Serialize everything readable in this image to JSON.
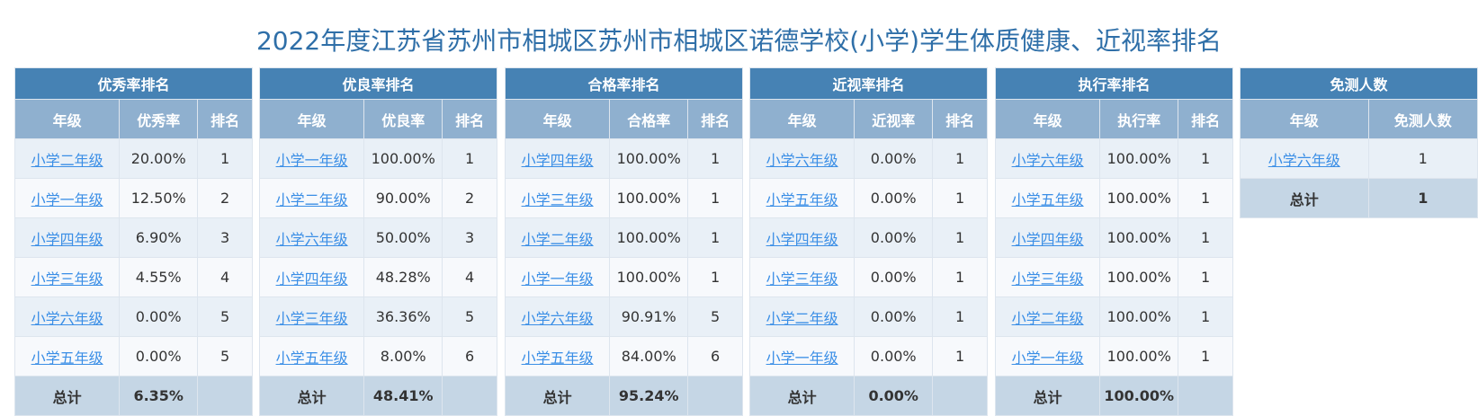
{
  "title": "2022年度江苏省苏州市相城区苏州市相城区诺德学校(小学)学生体质健康、近视率排名",
  "tables": [
    {
      "title": "优秀率排名",
      "headers": [
        "年级",
        "优秀率",
        "排名"
      ],
      "rows": [
        [
          "小学二年级",
          "20.00%",
          "1"
        ],
        [
          "小学一年级",
          "12.50%",
          "2"
        ],
        [
          "小学四年级",
          "6.90%",
          "3"
        ],
        [
          "小学三年级",
          "4.55%",
          "4"
        ],
        [
          "小学六年级",
          "0.00%",
          "5"
        ],
        [
          "小学五年级",
          "0.00%",
          "5"
        ]
      ],
      "total": [
        "总计",
        "6.35%"
      ]
    },
    {
      "title": "优良率排名",
      "headers": [
        "年级",
        "优良率",
        "排名"
      ],
      "rows": [
        [
          "小学一年级",
          "100.00%",
          "1"
        ],
        [
          "小学二年级",
          "90.00%",
          "2"
        ],
        [
          "小学六年级",
          "50.00%",
          "3"
        ],
        [
          "小学四年级",
          "48.28%",
          "4"
        ],
        [
          "小学三年级",
          "36.36%",
          "5"
        ],
        [
          "小学五年级",
          "8.00%",
          "6"
        ]
      ],
      "total": [
        "总计",
        "48.41%"
      ]
    },
    {
      "title": "合格率排名",
      "headers": [
        "年级",
        "合格率",
        "排名"
      ],
      "rows": [
        [
          "小学四年级",
          "100.00%",
          "1"
        ],
        [
          "小学三年级",
          "100.00%",
          "1"
        ],
        [
          "小学二年级",
          "100.00%",
          "1"
        ],
        [
          "小学一年级",
          "100.00%",
          "1"
        ],
        [
          "小学六年级",
          "90.91%",
          "5"
        ],
        [
          "小学五年级",
          "84.00%",
          "6"
        ]
      ],
      "total": [
        "总计",
        "95.24%"
      ]
    },
    {
      "title": "近视率排名",
      "headers": [
        "年级",
        "近视率",
        "排名"
      ],
      "rows": [
        [
          "小学六年级",
          "0.00%",
          "1"
        ],
        [
          "小学五年级",
          "0.00%",
          "1"
        ],
        [
          "小学四年级",
          "0.00%",
          "1"
        ],
        [
          "小学三年级",
          "0.00%",
          "1"
        ],
        [
          "小学二年级",
          "0.00%",
          "1"
        ],
        [
          "小学一年级",
          "0.00%",
          "1"
        ]
      ],
      "total": [
        "总计",
        "0.00%"
      ]
    },
    {
      "title": "执行率排名",
      "headers": [
        "年级",
        "执行率",
        "排名"
      ],
      "rows": [
        [
          "小学六年级",
          "100.00%",
          "1"
        ],
        [
          "小学五年级",
          "100.00%",
          "1"
        ],
        [
          "小学四年级",
          "100.00%",
          "1"
        ],
        [
          "小学三年级",
          "100.00%",
          "1"
        ],
        [
          "小学二年级",
          "100.00%",
          "1"
        ],
        [
          "小学一年级",
          "100.00%",
          "1"
        ]
      ],
      "total": [
        "总计",
        "100.00%"
      ]
    },
    {
      "title": "免测人数",
      "headers": [
        "年级",
        "免测人数"
      ],
      "rows": [
        [
          "小学六年级",
          "1"
        ]
      ],
      "total": [
        "总计",
        "1"
      ]
    }
  ]
}
